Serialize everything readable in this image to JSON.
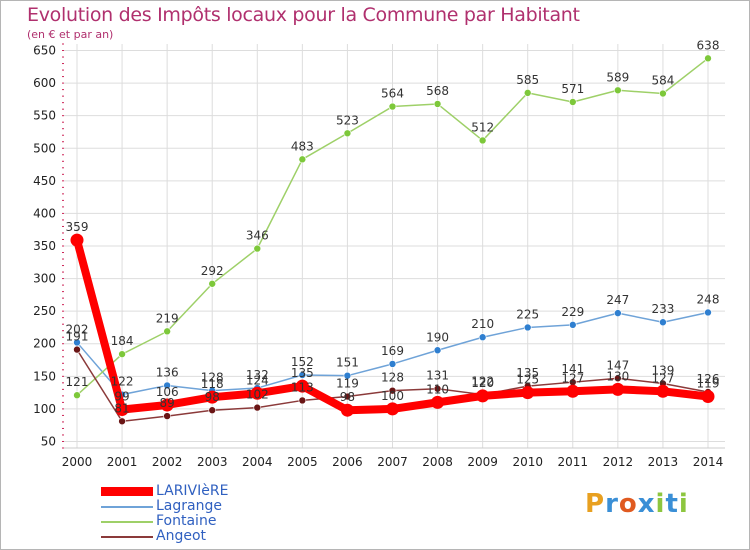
{
  "title": "Evolution des Impôts locaux pour la Commune par Habitant",
  "subtitle": "(en € et par an)",
  "logo_text": "Proxiti",
  "colors": {
    "title": "#b0306e",
    "grid": "#dddddd",
    "axis_ticks": "#cc2255",
    "legend_text": "#3060c0"
  },
  "chart_data": {
    "type": "line",
    "title": "Evolution des Impôts locaux pour la Commune par Habitant",
    "subtitle": "(en € et par an)",
    "xlabel": "",
    "ylabel": "",
    "x": [
      "2000",
      "2001",
      "2002",
      "2003",
      "2004",
      "2005",
      "2006",
      "2007",
      "2008",
      "2009",
      "2010",
      "2011",
      "2012",
      "2013",
      "2014"
    ],
    "yticks": [
      50,
      100,
      150,
      200,
      250,
      300,
      350,
      400,
      450,
      500,
      550,
      600,
      650
    ],
    "ylim": [
      40,
      660
    ],
    "grid": true,
    "legend_position": "bottom-left",
    "series": [
      {
        "name": "LARIVIèRE",
        "color": "#ff0000",
        "marker_fill": "#ff0000",
        "thick": true,
        "values": [
          359,
          99,
          106,
          118,
          124,
          135,
          98,
          100,
          110,
          120,
          125,
          127,
          130,
          127,
          119
        ]
      },
      {
        "name": "Lagrange",
        "color": "#6fa3d8",
        "marker_fill": "#2f7fd0",
        "thick": false,
        "values": [
          202,
          122,
          136,
          128,
          132,
          152,
          151,
          169,
          190,
          210,
          225,
          229,
          247,
          233,
          248
        ]
      },
      {
        "name": "Fontaine",
        "color": "#9ed068",
        "marker_fill": "#7dc83a",
        "thick": false,
        "values": [
          121,
          184,
          219,
          292,
          346,
          483,
          523,
          564,
          568,
          512,
          585,
          571,
          589,
          584,
          638
        ]
      },
      {
        "name": "Angeot",
        "color": "#8b3a3a",
        "marker_fill": "#6a1515",
        "thick": false,
        "values": [
          191,
          81,
          89,
          98,
          102,
          113,
          119,
          128,
          131,
          122,
          135,
          141,
          147,
          139,
          126
        ]
      }
    ]
  }
}
